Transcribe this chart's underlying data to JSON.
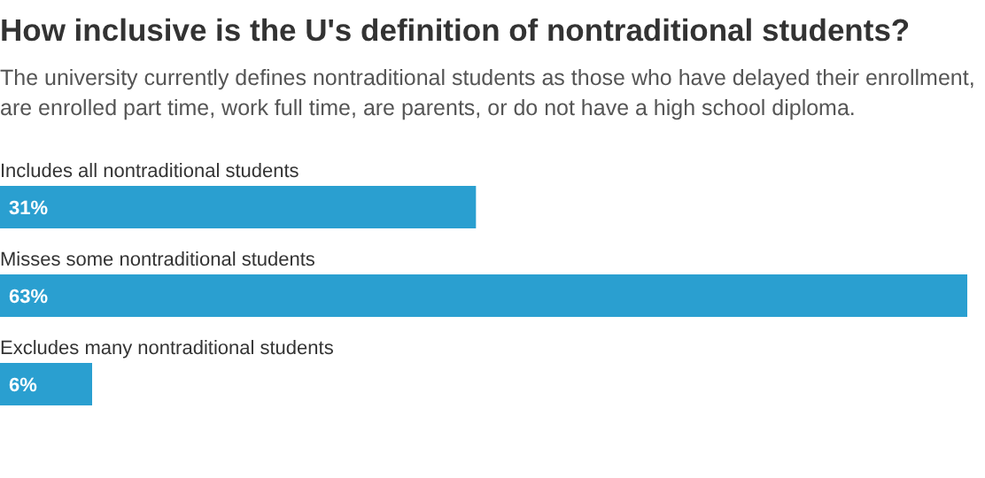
{
  "chart_data": {
    "type": "bar",
    "orientation": "horizontal",
    "title": "How inclusive is the U's definition of nontraditional students?",
    "subtitle": "The university currently defines nontraditional students as those who have delayed their enrollment, are enrolled part time, work full time, are parents, or do not have a high school diploma.",
    "categories": [
      "Includes all nontraditional students",
      "Misses some nontraditional students",
      "Excludes many nontraditional students"
    ],
    "values": [
      31,
      63,
      6
    ],
    "value_labels": [
      "31%",
      "63%",
      "6%"
    ],
    "color": "#2a9fd0"
  }
}
